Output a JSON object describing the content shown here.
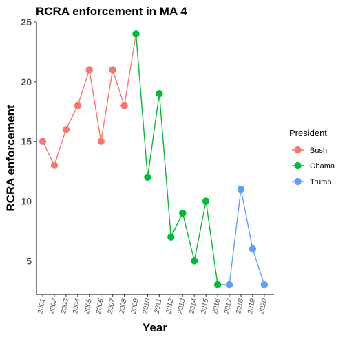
{
  "chart_data": {
    "type": "line",
    "title": "RCRA enforcement in MA 4",
    "xlabel": "Year",
    "ylabel": "RCRA enforcement",
    "ylim": [
      2.2,
      25
    ],
    "yticks": [
      5,
      10,
      15,
      20,
      25
    ],
    "x": [
      "2001",
      "2002",
      "2003",
      "2004",
      "2005",
      "2006",
      "2007",
      "2008",
      "2009",
      "2010",
      "2011",
      "2012",
      "2013",
      "2014",
      "2015",
      "2016",
      "2017",
      "2018",
      "2019",
      "2020"
    ],
    "grid": false,
    "legend": {
      "title": "President",
      "position": "right"
    },
    "series": [
      {
        "name": "Bush",
        "color": "#F8766D",
        "points": [
          [
            "2001",
            15
          ],
          [
            "2002",
            13
          ],
          [
            "2003",
            16
          ],
          [
            "2004",
            18
          ],
          [
            "2005",
            21
          ],
          [
            "2006",
            15
          ],
          [
            "2007",
            21
          ],
          [
            "2008",
            18
          ],
          [
            "2009",
            24
          ]
        ]
      },
      {
        "name": "Obama",
        "color": "#00BA38",
        "points": [
          [
            "2009",
            24
          ],
          [
            "2010",
            12
          ],
          [
            "2011",
            19
          ],
          [
            "2012",
            7
          ],
          [
            "2013",
            9
          ],
          [
            "2014",
            5
          ],
          [
            "2015",
            10
          ],
          [
            "2016",
            3
          ],
          [
            "2017",
            3
          ]
        ]
      },
      {
        "name": "Trump",
        "color": "#619CFF",
        "points": [
          [
            "2017",
            3
          ],
          [
            "2018",
            11
          ],
          [
            "2019",
            6
          ],
          [
            "2020",
            3
          ]
        ]
      }
    ],
    "markers": [
      {
        "x": "2001",
        "y": 15,
        "president": "Bush"
      },
      {
        "x": "2002",
        "y": 13,
        "president": "Bush"
      },
      {
        "x": "2003",
        "y": 16,
        "president": "Bush"
      },
      {
        "x": "2004",
        "y": 18,
        "president": "Bush"
      },
      {
        "x": "2005",
        "y": 21,
        "president": "Bush"
      },
      {
        "x": "2006",
        "y": 15,
        "president": "Bush"
      },
      {
        "x": "2007",
        "y": 21,
        "president": "Bush"
      },
      {
        "x": "2008",
        "y": 18,
        "president": "Bush"
      },
      {
        "x": "2009",
        "y": 24,
        "president": "Obama"
      },
      {
        "x": "2010",
        "y": 12,
        "president": "Obama"
      },
      {
        "x": "2011",
        "y": 19,
        "president": "Obama"
      },
      {
        "x": "2012",
        "y": 7,
        "president": "Obama"
      },
      {
        "x": "2013",
        "y": 9,
        "president": "Obama"
      },
      {
        "x": "2014",
        "y": 5,
        "president": "Obama"
      },
      {
        "x": "2015",
        "y": 10,
        "president": "Obama"
      },
      {
        "x": "2016",
        "y": 3,
        "president": "Obama"
      },
      {
        "x": "2017",
        "y": 3,
        "president": "Trump"
      },
      {
        "x": "2018",
        "y": 11,
        "president": "Trump"
      },
      {
        "x": "2019",
        "y": 6,
        "president": "Trump"
      },
      {
        "x": "2020",
        "y": 3,
        "president": "Trump"
      }
    ]
  }
}
